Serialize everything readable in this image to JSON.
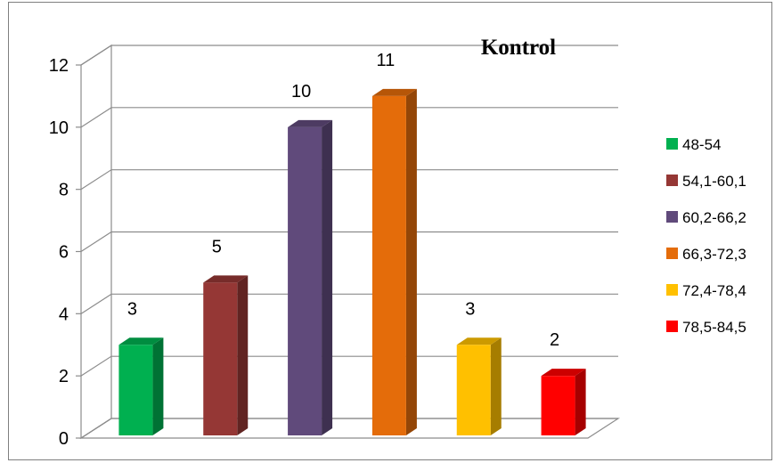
{
  "chart_data": {
    "type": "bar",
    "title": "Kontrol",
    "xlabel": "",
    "ylabel": "",
    "ylim": [
      0,
      12
    ],
    "yticks": [
      0,
      2,
      4,
      6,
      8,
      10,
      12
    ],
    "grid": true,
    "legend_position": "right",
    "three_d": true,
    "series": [
      {
        "name": "48-54",
        "value": 3,
        "color": "#00b050"
      },
      {
        "name": "54,1-60,1",
        "value": 5,
        "color": "#953735"
      },
      {
        "name": "60,2-66,2",
        "value": 10,
        "color": "#604a7b"
      },
      {
        "name": "66,3-72,3",
        "value": 11,
        "color": "#e46c0a"
      },
      {
        "name": "72,4-78,4",
        "value": 3,
        "color": "#ffc000"
      },
      {
        "name": "78,5-84,5",
        "value": 2,
        "color": "#ff0000"
      }
    ]
  }
}
